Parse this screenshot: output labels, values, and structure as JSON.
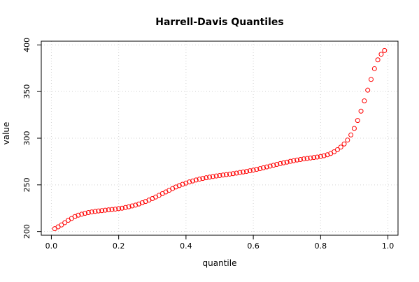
{
  "chart_data": {
    "type": "scatter",
    "title": "Harrell-Davis Quantiles",
    "xlabel": "quantile",
    "ylabel": "value",
    "xlim": [
      -0.03,
      1.03
    ],
    "ylim": [
      196,
      404
    ],
    "x_ticks": [
      0.0,
      0.2,
      0.4,
      0.6,
      0.8,
      1.0
    ],
    "x_tick_labels": [
      "0.0",
      "0.2",
      "0.4",
      "0.6",
      "0.8",
      "1.0"
    ],
    "y_ticks": [
      200,
      250,
      300,
      350,
      400
    ],
    "y_tick_labels": [
      "200",
      "250",
      "300",
      "350",
      "400"
    ],
    "grid": true,
    "point_color": "#ff0000",
    "grid_color": "#d3d3d3",
    "x": [
      0.01,
      0.02,
      0.03,
      0.04,
      0.05,
      0.06,
      0.07,
      0.08,
      0.09,
      0.1,
      0.11,
      0.12,
      0.13,
      0.14,
      0.15,
      0.16,
      0.17,
      0.18,
      0.19,
      0.2,
      0.21,
      0.22,
      0.23,
      0.24,
      0.25,
      0.26,
      0.27,
      0.28,
      0.29,
      0.3,
      0.31,
      0.32,
      0.33,
      0.34,
      0.35,
      0.36,
      0.37,
      0.38,
      0.39,
      0.4,
      0.41,
      0.42,
      0.43,
      0.44,
      0.45,
      0.46,
      0.47,
      0.48,
      0.49,
      0.5,
      0.51,
      0.52,
      0.53,
      0.54,
      0.55,
      0.56,
      0.57,
      0.58,
      0.59,
      0.6,
      0.61,
      0.62,
      0.63,
      0.64,
      0.65,
      0.66,
      0.67,
      0.68,
      0.69,
      0.7,
      0.71,
      0.72,
      0.73,
      0.74,
      0.75,
      0.76,
      0.77,
      0.78,
      0.79,
      0.8,
      0.81,
      0.82,
      0.83,
      0.84,
      0.85,
      0.86,
      0.87,
      0.88,
      0.89,
      0.9,
      0.91,
      0.92,
      0.93,
      0.94,
      0.95,
      0.96,
      0.97,
      0.98,
      0.99
    ],
    "y": [
      203,
      205,
      207,
      209.5,
      212,
      214,
      216,
      217.5,
      218.5,
      219.5,
      220.3,
      221,
      221.5,
      222,
      222.4,
      222.8,
      223.2,
      223.6,
      224,
      224.5,
      225,
      225.7,
      226.5,
      227.4,
      228.3,
      229.5,
      230.8,
      232.2,
      233.7,
      235.3,
      237,
      238.8,
      240.6,
      242.4,
      244.2,
      246,
      247.7,
      249.2,
      250.6,
      251.9,
      253.1,
      254.2,
      255.2,
      256.1,
      256.9,
      257.6,
      258.3,
      258.9,
      259.5,
      260,
      260.5,
      261,
      261.5,
      262,
      262.6,
      263.2,
      263.8,
      264.4,
      265.1,
      265.8,
      266.6,
      267.4,
      268.3,
      269.2,
      270.1,
      271,
      271.9,
      272.8,
      273.6,
      274.4,
      275.2,
      275.9,
      276.6,
      277.2,
      277.8,
      278.3,
      278.8,
      279.3,
      279.8,
      280.4,
      281.2,
      282.2,
      283.6,
      285.4,
      287.7,
      290.5,
      293.8,
      298,
      303.5,
      310.5,
      319,
      329,
      340,
      351.5,
      363,
      374.5,
      384,
      390,
      394
    ]
  }
}
